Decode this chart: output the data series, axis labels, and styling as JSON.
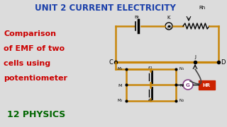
{
  "bg_color": "#dcdcdc",
  "title_text": "UNIT 2 CURRENT ELECTRICITY",
  "title_color": "#1a3faa",
  "title_rh": "Rh",
  "subtitle_lines": [
    "Comparison",
    "of EMF of two",
    "cells using",
    "potentiometer"
  ],
  "subtitle_color": "#cc0000",
  "bottom_text": "12 PHYSICS",
  "bottom_color": "#006600",
  "circuit_color": "#c8860a",
  "circuit_lw": 1.8,
  "label_color": "#000000",
  "galv_color": "#884488",
  "hr_color": "#cc2200"
}
